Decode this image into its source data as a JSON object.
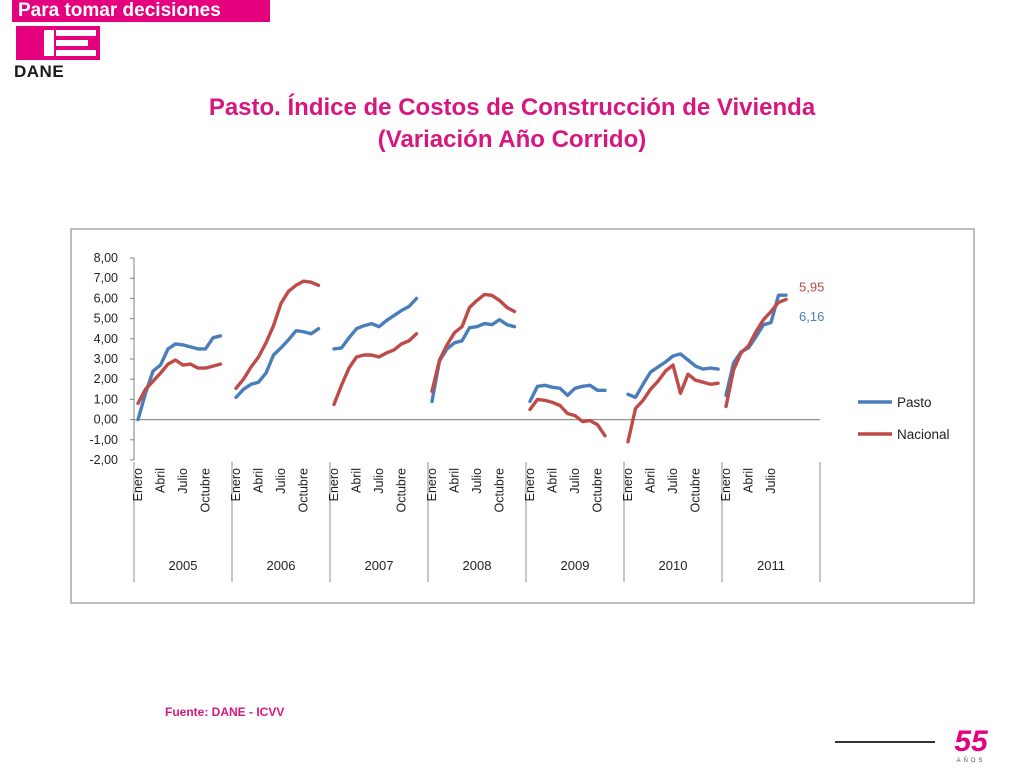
{
  "header": {
    "tagline": "Para tomar decisiones",
    "logo_text": "DANE"
  },
  "title": {
    "line1": "Pasto. Índice de Costos de Construcción de Vivienda",
    "line2": "(Variación Año Corrido)"
  },
  "source": "Fuente: DANE - ICVV",
  "badge": {
    "number": "55",
    "sub": "AÑOS"
  },
  "colors": {
    "brand": "#e5007e",
    "title": "#d6177f",
    "pasto": "#4a7ebb",
    "nacional": "#be4b48"
  },
  "chart_data": {
    "type": "line",
    "ylim": [
      -2,
      8
    ],
    "yticks": [
      "-2,00",
      "-1,00",
      "0,00",
      "1,00",
      "2,00",
      "3,00",
      "4,00",
      "5,00",
      "6,00",
      "7,00",
      "8,00"
    ],
    "month_labels": [
      "Enero",
      "Abril",
      "Julio",
      "Octubre"
    ],
    "years": [
      "2005",
      "2006",
      "2007",
      "2008",
      "2009",
      "2010",
      "2011"
    ],
    "legend_position": "right",
    "series": [
      {
        "name": "Pasto",
        "color": "#4a7ebb",
        "data": [
          [
            0.0,
            1.3,
            2.4,
            2.7,
            3.5,
            3.75,
            3.7,
            3.6,
            3.5,
            3.5,
            4.05,
            4.15
          ],
          [
            1.1,
            1.5,
            1.75,
            1.85,
            2.3,
            3.2,
            3.55,
            3.95,
            4.4,
            4.35,
            4.25,
            4.5
          ],
          [
            3.5,
            3.55,
            4.05,
            4.5,
            4.65,
            4.75,
            4.6,
            4.9,
            5.15,
            5.4,
            5.6,
            6.0
          ],
          [
            0.9,
            2.9,
            3.5,
            3.8,
            3.9,
            4.55,
            4.6,
            4.75,
            4.7,
            4.95,
            4.7,
            4.6
          ],
          [
            0.9,
            1.65,
            1.7,
            1.6,
            1.55,
            1.2,
            1.55,
            1.65,
            1.7,
            1.45,
            1.45
          ],
          [
            1.25,
            1.1,
            1.75,
            2.35,
            2.6,
            2.85,
            3.15,
            3.25,
            2.95,
            2.65,
            2.5,
            2.55,
            2.5
          ],
          [
            1.2,
            2.8,
            3.35,
            3.55,
            4.1,
            4.7,
            4.8,
            6.16,
            6.16
          ]
        ]
      },
      {
        "name": "Nacional",
        "color": "#be4b48",
        "data": [
          [
            0.8,
            1.5,
            1.9,
            2.3,
            2.75,
            2.95,
            2.7,
            2.75,
            2.55,
            2.55,
            2.65,
            2.75
          ],
          [
            1.55,
            2.0,
            2.6,
            3.1,
            3.8,
            4.65,
            5.75,
            6.35,
            6.65,
            6.85,
            6.8,
            6.65
          ],
          [
            0.75,
            1.7,
            2.55,
            3.1,
            3.2,
            3.2,
            3.1,
            3.3,
            3.45,
            3.75,
            3.9,
            4.25
          ],
          [
            1.4,
            2.95,
            3.7,
            4.3,
            4.6,
            5.55,
            5.9,
            6.2,
            6.15,
            5.9,
            5.55,
            5.35
          ],
          [
            0.5,
            1.0,
            0.95,
            0.85,
            0.7,
            0.3,
            0.2,
            -0.1,
            -0.05,
            -0.25,
            -0.8
          ],
          [
            -1.1,
            0.55,
            0.95,
            1.5,
            1.9,
            2.4,
            2.7,
            1.3,
            2.25,
            1.95,
            1.85,
            1.75,
            1.8
          ],
          [
            0.65,
            2.45,
            3.3,
            3.65,
            4.35,
            4.95,
            5.35,
            5.8,
            5.95
          ]
        ]
      }
    ],
    "annotations": [
      {
        "series": "Nacional",
        "text": "5,95"
      },
      {
        "series": "Pasto",
        "text": "6,16"
      }
    ]
  }
}
